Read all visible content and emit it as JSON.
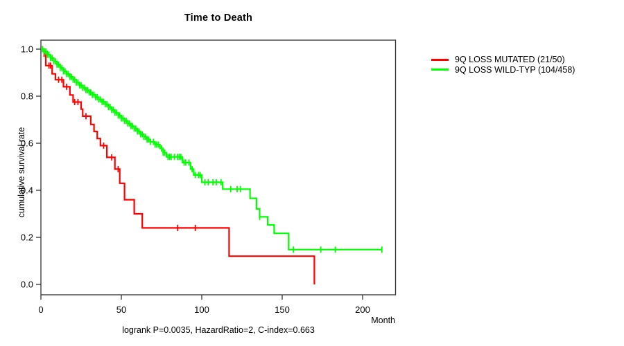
{
  "chart_data": {
    "type": "line",
    "subtype": "kaplan-meier-step",
    "title": "Time to Death",
    "xlabel": "Month",
    "ylabel": "cumulative survival rate",
    "footer": "logrank P=0.0035, HazardRatio=2, C-index=0.663",
    "axis_color": "#303030",
    "grid": false,
    "legend_position": "right-outside",
    "xlim": [
      0,
      220
    ],
    "ylim": [
      0.0,
      1.0
    ],
    "x_ticks": {
      "values": [
        0,
        50,
        100,
        150,
        200
      ],
      "labels": [
        "0",
        "50",
        "100",
        "150",
        "200"
      ]
    },
    "y_ticks": {
      "values": [
        0.0,
        0.2,
        0.4,
        0.6,
        0.8,
        1.0
      ],
      "labels": [
        "0.0",
        "0.2",
        "0.4",
        "0.6",
        "0.8",
        "1.0"
      ]
    },
    "series": [
      {
        "id": "mutated",
        "name": "9Q LOSS MUTATED (21/50)",
        "events_ratio": "21/50",
        "color": "#ff0000",
        "end_month": 170,
        "steps": [
          [
            0,
            1.0
          ],
          [
            2,
            0.98
          ],
          [
            3,
            0.93
          ],
          [
            7,
            0.895
          ],
          [
            9,
            0.87
          ],
          [
            14,
            0.84
          ],
          [
            18,
            0.805
          ],
          [
            20,
            0.775
          ],
          [
            25,
            0.745
          ],
          [
            26,
            0.715
          ],
          [
            31,
            0.68
          ],
          [
            33,
            0.65
          ],
          [
            35,
            0.62
          ],
          [
            37,
            0.59
          ],
          [
            41,
            0.54
          ],
          [
            46,
            0.49
          ],
          [
            49,
            0.43
          ],
          [
            52,
            0.36
          ],
          [
            58,
            0.3
          ],
          [
            63,
            0.24
          ],
          [
            117,
            0.12
          ],
          [
            170,
            0.0
          ]
        ],
        "censor_months": [
          1,
          2,
          5,
          6,
          11,
          13,
          16,
          21,
          23,
          28,
          39,
          44,
          48,
          85,
          96
        ]
      },
      {
        "id": "wildtype",
        "name": "9Q LOSS WILD-TYP (104/458)",
        "events_ratio": "104/458",
        "color": "#00ff00",
        "end_month": 212,
        "steps": [
          [
            0,
            1.0
          ],
          [
            2,
            0.99
          ],
          [
            4,
            0.976
          ],
          [
            6,
            0.962
          ],
          [
            8,
            0.948
          ],
          [
            10,
            0.934
          ],
          [
            12,
            0.92
          ],
          [
            14,
            0.906
          ],
          [
            16,
            0.894
          ],
          [
            18,
            0.882
          ],
          [
            20,
            0.87
          ],
          [
            22,
            0.858
          ],
          [
            24,
            0.846
          ],
          [
            26,
            0.836
          ],
          [
            28,
            0.826
          ],
          [
            30,
            0.816
          ],
          [
            32,
            0.806
          ],
          [
            34,
            0.796
          ],
          [
            36,
            0.786
          ],
          [
            38,
            0.776
          ],
          [
            40,
            0.766
          ],
          [
            42,
            0.754
          ],
          [
            44,
            0.742
          ],
          [
            46,
            0.73
          ],
          [
            48,
            0.718
          ],
          [
            50,
            0.706
          ],
          [
            52,
            0.695
          ],
          [
            54,
            0.684
          ],
          [
            56,
            0.673
          ],
          [
            58,
            0.662
          ],
          [
            60,
            0.65
          ],
          [
            62,
            0.638
          ],
          [
            64,
            0.627
          ],
          [
            66,
            0.616
          ],
          [
            68,
            0.606
          ],
          [
            71,
            0.594
          ],
          [
            74,
            0.578
          ],
          [
            76,
            0.56
          ],
          [
            78,
            0.542
          ],
          [
            88,
            0.518
          ],
          [
            93,
            0.49
          ],
          [
            95,
            0.465
          ],
          [
            100,
            0.434
          ],
          [
            113,
            0.405
          ],
          [
            130,
            0.366
          ],
          [
            134,
            0.321
          ],
          [
            136,
            0.287
          ],
          [
            141,
            0.253
          ],
          [
            145,
            0.217
          ],
          [
            154,
            0.148
          ]
        ],
        "censor_months": [
          1,
          2,
          3,
          4,
          5,
          6,
          7,
          8,
          9,
          10,
          11,
          12,
          13,
          14,
          15,
          16,
          17,
          18,
          19,
          20,
          21,
          22,
          23,
          24,
          25,
          26,
          27,
          28,
          29,
          30,
          31,
          32,
          33,
          34,
          35,
          36,
          37,
          38,
          39,
          40,
          41,
          42,
          43,
          44,
          45,
          46,
          47,
          48,
          49,
          50,
          51,
          52,
          53,
          54,
          55,
          56,
          57,
          58,
          59,
          60,
          61,
          62,
          63,
          64,
          65,
          66,
          67,
          68,
          70,
          71,
          72,
          73,
          75,
          76,
          77,
          79,
          80,
          81,
          83,
          85,
          86,
          87,
          89,
          90,
          92,
          94,
          96,
          98,
          99,
          102,
          104,
          107,
          109,
          112,
          118,
          122,
          124,
          136,
          157,
          174,
          183,
          212
        ]
      }
    ]
  }
}
